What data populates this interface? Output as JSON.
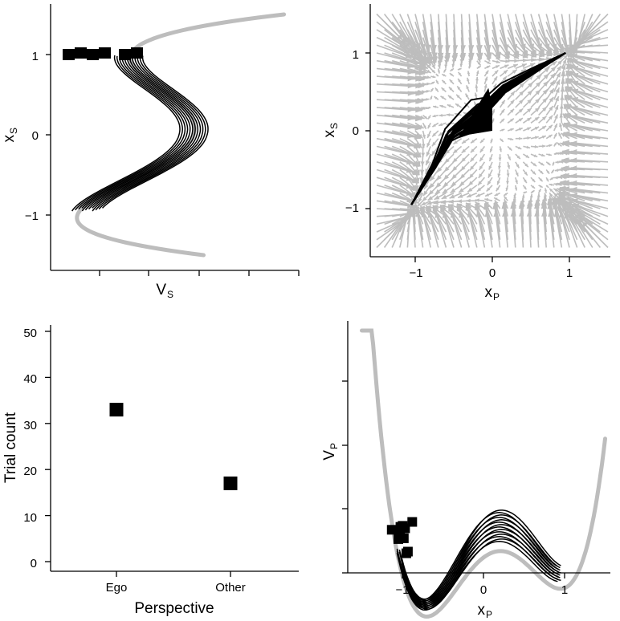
{
  "chart_data": [
    {
      "type": "line",
      "panel": "top-left",
      "xlabel": "V",
      "xlabel_sub": "S",
      "ylabel": "x",
      "ylabel_sub": "S",
      "x_ticks": [
        "",
        "",
        "",
        "",
        ""
      ],
      "y_ticks": [
        {
          "value": 1,
          "label": "1"
        },
        {
          "value": 0,
          "label": "0"
        },
        {
          "value": -1,
          "label": "−1"
        }
      ],
      "ylim": [
        -1.55,
        1.55
      ],
      "series": [
        {
          "role": "potential-curve",
          "color": "#bdbdbd",
          "shape": "quartic double-well V(x)=x^4/4 - x^2/2",
          "x_range": [
            -1.5,
            1.5
          ]
        },
        {
          "role": "trajectories",
          "color": "#000000",
          "count": 12,
          "x_range": [
            -0.95,
            1.0
          ]
        }
      ],
      "markers": {
        "shape": "square",
        "color": "#000000",
        "y": 1.0,
        "count": 6
      }
    },
    {
      "type": "line",
      "panel": "top-right",
      "xlabel": "x",
      "xlabel_sub": "P",
      "ylabel": "x",
      "ylabel_sub": "S",
      "x_ticks": [
        {
          "value": -1,
          "label": "−1"
        },
        {
          "value": 0,
          "label": "0"
        },
        {
          "value": 1,
          "label": "1"
        }
      ],
      "y_ticks": [
        {
          "value": 1,
          "label": "1"
        },
        {
          "value": 0,
          "label": "0"
        },
        {
          "value": -1,
          "label": "−1"
        }
      ],
      "xlim": [
        -1.55,
        1.55
      ],
      "ylim": [
        -1.55,
        1.55
      ],
      "vector_field": {
        "color": "#bdbdbd",
        "grid_step": 0.1
      },
      "trajectories": {
        "color": "#000000",
        "count": 20,
        "endpoints": [
          {
            "x": -1.05,
            "y": -0.95
          },
          {
            "x": 0.95,
            "y": 1.0
          }
        ],
        "cluster_center": {
          "x": -0.15,
          "y": 0.25
        }
      }
    },
    {
      "type": "scatter",
      "panel": "bottom-left",
      "categories": [
        "Ego",
        "Other"
      ],
      "values": [
        33,
        17
      ],
      "xlabel": "Perspective",
      "ylabel": "Trial count",
      "y_ticks": [
        {
          "value": 0,
          "label": "0"
        },
        {
          "value": 10,
          "label": "10"
        },
        {
          "value": 20,
          "label": "20"
        },
        {
          "value": 30,
          "label": "30"
        },
        {
          "value": 40,
          "label": "40"
        },
        {
          "value": 50,
          "label": "50"
        }
      ],
      "ylim": [
        0,
        52
      ],
      "marker": {
        "shape": "square",
        "color": "#000000"
      }
    },
    {
      "type": "line",
      "panel": "bottom-right",
      "xlabel": "x",
      "xlabel_sub": "P",
      "ylabel": "V",
      "ylabel_sub": "P",
      "x_ticks": [
        {
          "value": -1,
          "label": "−1"
        },
        {
          "value": 0,
          "label": "0"
        },
        {
          "value": 1,
          "label": "1"
        }
      ],
      "y_ticks": [
        "",
        "",
        "",
        ""
      ],
      "xlim": [
        -1.6,
        1.6
      ],
      "series": [
        {
          "role": "potential-curve",
          "color": "#bdbdbd",
          "shape": "asymmetric double-well",
          "x_range": [
            -1.5,
            1.5
          ]
        },
        {
          "role": "trajectories",
          "color": "#000000",
          "count": 14,
          "x_range": [
            -1.05,
            0.95
          ]
        }
      ],
      "markers": {
        "shape": "square",
        "color": "#000000",
        "near_x": -1.0,
        "count": 12
      }
    }
  ]
}
